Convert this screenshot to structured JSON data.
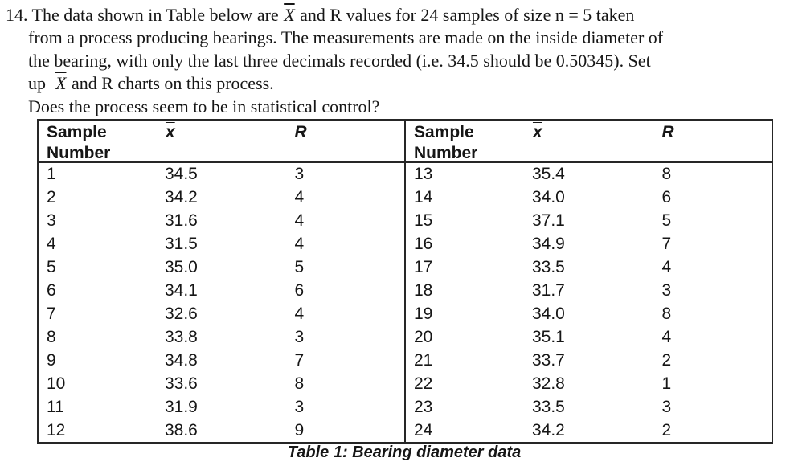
{
  "problem": {
    "number": "14.",
    "line1_pre": "The data shown in Table below are ",
    "line1_xbar": "X",
    "line1_post": " and R values for 24 samples of size n = 5 taken",
    "line2": "from a process producing bearings. The measurements are made on the inside diameter of",
    "line3": "the bearing, with only the last three decimals recorded (i.e. 34.5 should be 0.50345). Set",
    "line4_pre": "up  ",
    "line4_xbar": "X",
    "line4_post": " and R charts on this process.",
    "line5": "Does the process seem to be in statistical control?"
  },
  "table": {
    "header": {
      "sample_line1": "Sample",
      "sample_line2": "Number",
      "xbar": "x",
      "r": "R"
    },
    "caption": "Table 1: Bearing diameter data",
    "left_rows": [
      {
        "n": "1",
        "xbar": "34.5",
        "r": "3"
      },
      {
        "n": "2",
        "xbar": "34.2",
        "r": "4"
      },
      {
        "n": "3",
        "xbar": "31.6",
        "r": "4"
      },
      {
        "n": "4",
        "xbar": "31.5",
        "r": "4"
      },
      {
        "n": "5",
        "xbar": "35.0",
        "r": "5"
      },
      {
        "n": "6",
        "xbar": "34.1",
        "r": "6"
      },
      {
        "n": "7",
        "xbar": "32.6",
        "r": "4"
      },
      {
        "n": "8",
        "xbar": "33.8",
        "r": "3"
      },
      {
        "n": "9",
        "xbar": "34.8",
        "r": "7"
      },
      {
        "n": "10",
        "xbar": "33.6",
        "r": "8"
      },
      {
        "n": "11",
        "xbar": "31.9",
        "r": "3"
      },
      {
        "n": "12",
        "xbar": "38.6",
        "r": "9"
      }
    ],
    "right_rows": [
      {
        "n": "13",
        "xbar": "35.4",
        "r": "8"
      },
      {
        "n": "14",
        "xbar": "34.0",
        "r": "6"
      },
      {
        "n": "15",
        "xbar": "37.1",
        "r": "5"
      },
      {
        "n": "16",
        "xbar": "34.9",
        "r": "7"
      },
      {
        "n": "17",
        "xbar": "33.5",
        "r": "4"
      },
      {
        "n": "18",
        "xbar": "31.7",
        "r": "3"
      },
      {
        "n": "19",
        "xbar": "34.0",
        "r": "8"
      },
      {
        "n": "20",
        "xbar": "35.1",
        "r": "4"
      },
      {
        "n": "21",
        "xbar": "33.7",
        "r": "2"
      },
      {
        "n": "22",
        "xbar": "32.8",
        "r": "1"
      },
      {
        "n": "23",
        "xbar": "33.5",
        "r": "3"
      },
      {
        "n": "24",
        "xbar": "34.2",
        "r": "2"
      }
    ]
  }
}
